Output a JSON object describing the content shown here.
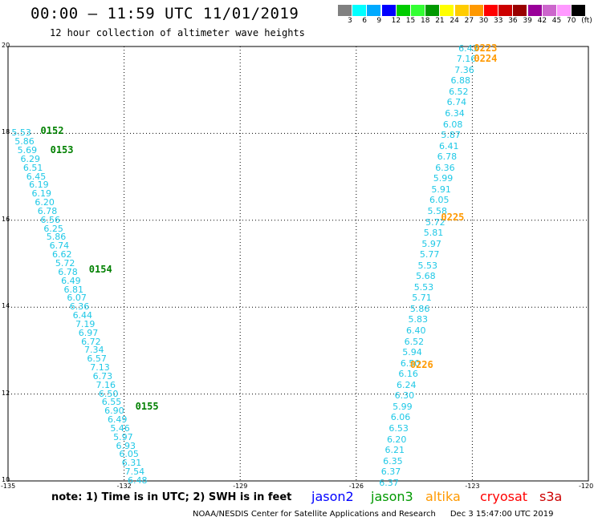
{
  "header": {
    "title": "00:00 – 11:59 UTC 11/01/2019",
    "subtitle": "12 hour collection of altimeter wave heights"
  },
  "color_scale": {
    "labels": [
      "3",
      "6",
      "9",
      "12",
      "15",
      "18",
      "21",
      "24",
      "27",
      "30",
      "33",
      "36",
      "39",
      "42",
      "45",
      "70",
      "(ft)"
    ],
    "colors": [
      "#808080",
      "#00ffff",
      "#00aaff",
      "#0000ff",
      "#00cc00",
      "#33ff33",
      "#009900",
      "#ffff00",
      "#ffcc00",
      "#ff9900",
      "#ff0000",
      "#cc0000",
      "#990000",
      "#990099",
      "#cc66cc",
      "#ff99ff",
      "#000000"
    ]
  },
  "map": {
    "lon_ticks": [
      "-135",
      "-132",
      "-129",
      "-126",
      "-123",
      "-120"
    ],
    "lat_ticks": [
      "20",
      "18",
      "16",
      "14",
      "12",
      "10"
    ],
    "lon_range": [
      -135,
      -120
    ],
    "lat_range": [
      10,
      20
    ],
    "observation_color": "#1fc8e6"
  },
  "tracks": [
    {
      "satellite": "jason3",
      "color": "#008000",
      "time_labels": [
        {
          "text": "0152",
          "lat": 18.05,
          "lon": -134.2
        },
        {
          "text": "0153",
          "lat": 17.6,
          "lon": -133.95
        },
        {
          "text": "0154",
          "lat": 14.85,
          "lon": -132.95
        },
        {
          "text": "0155",
          "lat": 11.7,
          "lon": -131.75
        }
      ],
      "points": [
        {
          "v": "5.53",
          "lat": 18.0,
          "lon": -134.95
        },
        {
          "v": "5.86",
          "lat": 17.8,
          "lon": -134.87
        },
        {
          "v": "5.69",
          "lat": 17.6,
          "lon": -134.8
        },
        {
          "v": "6.29",
          "lat": 17.4,
          "lon": -134.72
        },
        {
          "v": "6.51",
          "lat": 17.2,
          "lon": -134.65
        },
        {
          "v": "6.45",
          "lat": 17.0,
          "lon": -134.57
        },
        {
          "v": "6.19",
          "lat": 16.8,
          "lon": -134.5
        },
        {
          "v": "6.19",
          "lat": 16.6,
          "lon": -134.43
        },
        {
          "v": "6.20",
          "lat": 16.4,
          "lon": -134.35
        },
        {
          "v": "6.78",
          "lat": 16.2,
          "lon": -134.28
        },
        {
          "v": "6.56",
          "lat": 16.0,
          "lon": -134.2
        },
        {
          "v": "6.25",
          "lat": 15.8,
          "lon": -134.12
        },
        {
          "v": "5.86",
          "lat": 15.6,
          "lon": -134.05
        },
        {
          "v": "6.74",
          "lat": 15.4,
          "lon": -133.97
        },
        {
          "v": "6.62",
          "lat": 15.2,
          "lon": -133.9
        },
        {
          "v": "5.72",
          "lat": 15.0,
          "lon": -133.82
        },
        {
          "v": "6.78",
          "lat": 14.8,
          "lon": -133.75
        },
        {
          "v": "6.49",
          "lat": 14.6,
          "lon": -133.67
        },
        {
          "v": "6.81",
          "lat": 14.4,
          "lon": -133.6
        },
        {
          "v": "6.07",
          "lat": 14.2,
          "lon": -133.52
        },
        {
          "v": "6.36",
          "lat": 14.0,
          "lon": -133.45
        },
        {
          "v": "6.44",
          "lat": 13.8,
          "lon": -133.37
        },
        {
          "v": "7.19",
          "lat": 13.6,
          "lon": -133.3
        },
        {
          "v": "6.97",
          "lat": 13.4,
          "lon": -133.22
        },
        {
          "v": "6.72",
          "lat": 13.2,
          "lon": -133.15
        },
        {
          "v": "7.34",
          "lat": 13.0,
          "lon": -133.07
        },
        {
          "v": "6.57",
          "lat": 12.8,
          "lon": -133.0
        },
        {
          "v": "7.13",
          "lat": 12.6,
          "lon": -132.92
        },
        {
          "v": "6.73",
          "lat": 12.4,
          "lon": -132.85
        },
        {
          "v": "7.16",
          "lat": 12.2,
          "lon": -132.77
        },
        {
          "v": "6.50",
          "lat": 12.0,
          "lon": -132.7
        },
        {
          "v": "6.55",
          "lat": 11.8,
          "lon": -132.62
        },
        {
          "v": "6.90",
          "lat": 11.6,
          "lon": -132.55
        },
        {
          "v": "6.49",
          "lat": 11.4,
          "lon": -132.47
        },
        {
          "v": "5.46",
          "lat": 11.2,
          "lon": -132.4
        },
        {
          "v": "5.97",
          "lat": 11.0,
          "lon": -132.32
        },
        {
          "v": "6.93",
          "lat": 10.8,
          "lon": -132.25
        },
        {
          "v": "6.05",
          "lat": 10.6,
          "lon": -132.17
        },
        {
          "v": "6.31",
          "lat": 10.4,
          "lon": -132.1
        },
        {
          "v": "7.54",
          "lat": 10.2,
          "lon": -132.02
        },
        {
          "v": "6.48",
          "lat": 10.0,
          "lon": -131.95
        }
      ]
    },
    {
      "satellite": "altika",
      "color": "#ff9900",
      "time_labels": [
        {
          "text": "0223",
          "lat": 19.95,
          "lon": -123.0
        },
        {
          "text": "0224",
          "lat": 19.7,
          "lon": -123.0
        },
        {
          "text": "0225",
          "lat": 16.05,
          "lon": -123.85
        },
        {
          "text": "0226",
          "lat": 12.65,
          "lon": -124.65
        }
      ],
      "points": [
        {
          "v": "6.43",
          "lat": 19.95,
          "lon": -123.4
        },
        {
          "v": "7.16",
          "lat": 19.7,
          "lon": -123.45
        },
        {
          "v": "7.36",
          "lat": 19.45,
          "lon": -123.5
        },
        {
          "v": "6.88",
          "lat": 19.2,
          "lon": -123.6
        },
        {
          "v": "6.52",
          "lat": 18.95,
          "lon": -123.65
        },
        {
          "v": "6.74",
          "lat": 18.7,
          "lon": -123.7
        },
        {
          "v": "6.34",
          "lat": 18.45,
          "lon": -123.75
        },
        {
          "v": "6.08",
          "lat": 18.2,
          "lon": -123.8
        },
        {
          "v": "5.87",
          "lat": 17.95,
          "lon": -123.85
        },
        {
          "v": "6.41",
          "lat": 17.7,
          "lon": -123.9
        },
        {
          "v": "6.78",
          "lat": 17.45,
          "lon": -123.95
        },
        {
          "v": "6.36",
          "lat": 17.2,
          "lon": -124.0
        },
        {
          "v": "5.99",
          "lat": 16.95,
          "lon": -124.05
        },
        {
          "v": "5.91",
          "lat": 16.7,
          "lon": -124.1
        },
        {
          "v": "6.05",
          "lat": 16.45,
          "lon": -124.15
        },
        {
          "v": "5.58",
          "lat": 16.2,
          "lon": -124.2
        },
        {
          "v": "5.72",
          "lat": 15.95,
          "lon": -124.25
        },
        {
          "v": "5.81",
          "lat": 15.7,
          "lon": -124.3
        },
        {
          "v": "5.97",
          "lat": 15.45,
          "lon": -124.35
        },
        {
          "v": "5.77",
          "lat": 15.2,
          "lon": -124.4
        },
        {
          "v": "5.53",
          "lat": 14.95,
          "lon": -124.45
        },
        {
          "v": "5.68",
          "lat": 14.7,
          "lon": -124.5
        },
        {
          "v": "5.53",
          "lat": 14.45,
          "lon": -124.55
        },
        {
          "v": "5.71",
          "lat": 14.2,
          "lon": -124.6
        },
        {
          "v": "5.86",
          "lat": 13.95,
          "lon": -124.65
        },
        {
          "v": "5.83",
          "lat": 13.7,
          "lon": -124.7
        },
        {
          "v": "6.40",
          "lat": 13.45,
          "lon": -124.75
        },
        {
          "v": "6.52",
          "lat": 13.2,
          "lon": -124.8
        },
        {
          "v": "5.94",
          "lat": 12.95,
          "lon": -124.85
        },
        {
          "v": "6.50",
          "lat": 12.7,
          "lon": -124.9
        },
        {
          "v": "6.16",
          "lat": 12.45,
          "lon": -124.95
        },
        {
          "v": "6.24",
          "lat": 12.2,
          "lon": -125.0
        },
        {
          "v": "6.30",
          "lat": 11.95,
          "lon": -125.05
        },
        {
          "v": "5.99",
          "lat": 11.7,
          "lon": -125.1
        },
        {
          "v": "6.06",
          "lat": 11.45,
          "lon": -125.15
        },
        {
          "v": "6.53",
          "lat": 11.2,
          "lon": -125.2
        },
        {
          "v": "6.20",
          "lat": 10.95,
          "lon": -125.25
        },
        {
          "v": "6.21",
          "lat": 10.7,
          "lon": -125.3
        },
        {
          "v": "6.35",
          "lat": 10.45,
          "lon": -125.35
        },
        {
          "v": "6.37",
          "lat": 10.2,
          "lon": -125.4
        },
        {
          "v": "6.37",
          "lat": 9.95,
          "lon": -125.45
        }
      ]
    }
  ],
  "footer": {
    "note": "note:  1) Time is in UTC;  2) SWH is in feet",
    "satellites": [
      {
        "name": "jason2",
        "color": "#0000ff"
      },
      {
        "name": "jason3",
        "color": "#009900"
      },
      {
        "name": "altika",
        "color": "#ff9900"
      },
      {
        "name": "cryosat",
        "color": "#ff0000"
      },
      {
        "name": "s3a",
        "color": "#cc0000"
      }
    ],
    "credit": "NOAA/NESDIS Center for Satellite Applications and Research",
    "timestamp": "Dec  3 15:47:00 UTC 2019"
  }
}
